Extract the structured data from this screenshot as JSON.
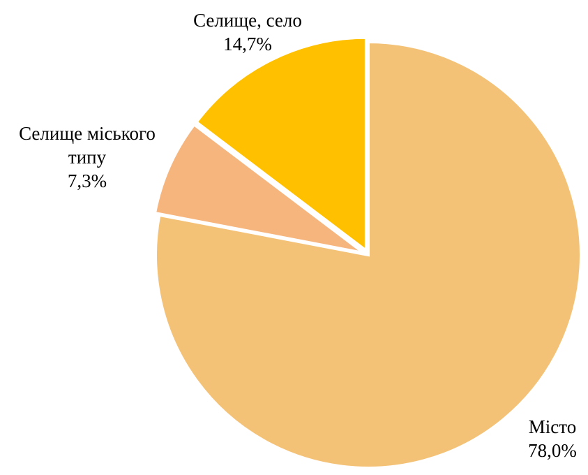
{
  "chart_data": {
    "type": "pie",
    "title": "",
    "start_angle_deg": 0,
    "direction": "clockwise",
    "slices": [
      {
        "label": "Місто",
        "label_lines": [
          "Місто"
        ],
        "value": 78.0,
        "value_label": "78,0%",
        "color": "#F4C277",
        "exploded": false
      },
      {
        "label": "Селище міського типу",
        "label_lines": [
          "Селище міського",
          "типу"
        ],
        "value": 7.3,
        "value_label": "7,3%",
        "color": "#F7B57E",
        "exploded": true
      },
      {
        "label": "Селище, село",
        "label_lines": [
          "Селище, село"
        ],
        "value": 14.7,
        "value_label": "14,7%",
        "color": "#FFC000",
        "exploded": true
      }
    ],
    "legend": "none",
    "data_labels": "outside"
  }
}
